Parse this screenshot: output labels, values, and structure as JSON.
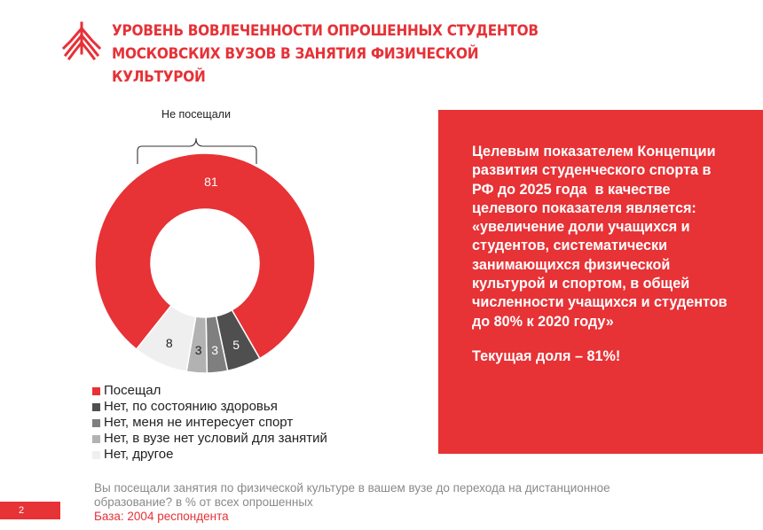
{
  "title": "Уровень вовлеченности опрошенных студентов московских вузов в занятия физической культурой",
  "chart_data": {
    "type": "pie",
    "bracket_label": "Не посещали",
    "bracket_slices": [
      1,
      2,
      3,
      4
    ],
    "slices": [
      {
        "label": "Посещал",
        "value": 81,
        "color": "#e73236",
        "text_color": "#ffffff"
      },
      {
        "label": "Нет, по состоянию здоровья",
        "value": 5,
        "color": "#4f4f4f",
        "text_color": "#ffffff"
      },
      {
        "label": "Нет, меня не интересует спорт",
        "value": 3,
        "color": "#7f7f7f",
        "text_color": "#ffffff"
      },
      {
        "label": "Нет, в вузе нет условий для занятий",
        "value": 3,
        "color": "#b2b2b2",
        "text_color": "#222222"
      },
      {
        "label": "Нет, другое",
        "value": 8,
        "color": "#efefef",
        "text_color": "#222222"
      }
    ]
  },
  "callout": {
    "text": "Целевым показателем Концепции развития студенческого спорта в РФ до 2025 года  в качестве целевого показателя является: «увеличение доли учащихся и студентов, систематически занимающихся физической культурой и спортом, в общей численности учащихся и студентов до 80% к 2020 году»",
    "current": "Текущая доля – 81%!"
  },
  "footer": {
    "page_number": "2",
    "question": "Вы посещали занятия по физической культуре в вашем вузе до перехода на дистанционное образование? в % от всех опрошенных",
    "base": "База: 2004 респондента"
  }
}
